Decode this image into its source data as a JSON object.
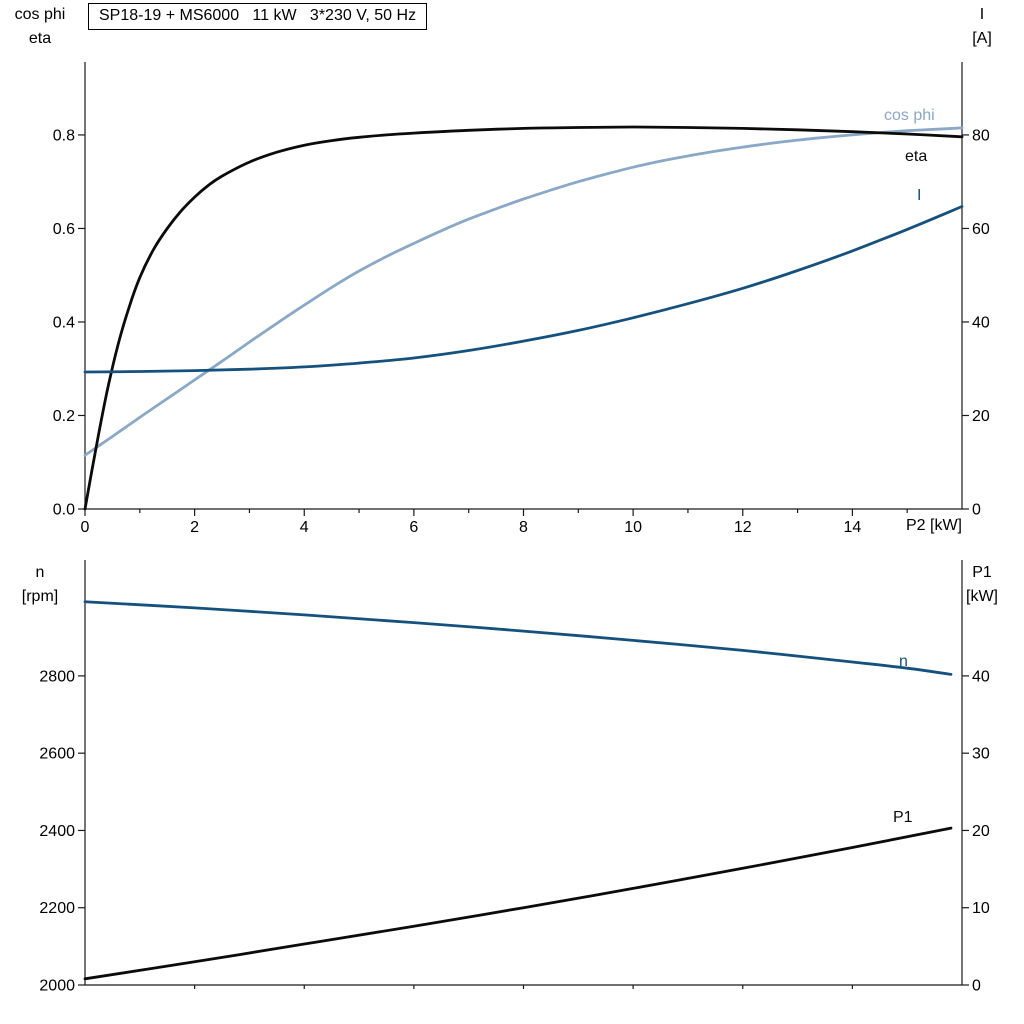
{
  "title": "SP18-19 + MS6000   11 kW   3*230 V, 50 Hz",
  "colors": {
    "black": "#0b0b0b",
    "light_blue": "#8aa8c7",
    "navy": "#15517e",
    "axis": "#1a1a1a"
  },
  "labels": {
    "top_left": [
      "cos phi",
      "eta"
    ],
    "top_right": [
      "I",
      "[A]"
    ],
    "bottom_left": [
      "n",
      "[rpm]"
    ],
    "bottom_right": [
      "P1",
      "[kW]"
    ],
    "x_axis": "P2 [kW]"
  },
  "chart_data": [
    {
      "type": "line",
      "title": "SP18-19 + MS6000   11 kW   3*230 V, 50 Hz",
      "xlabel": "P2 [kW]",
      "ylabel_left": [
        "cos phi",
        "eta"
      ],
      "ylabel_right": [
        "I",
        "[A]"
      ],
      "xlim": [
        0,
        16
      ],
      "ylim_left": [
        0,
        0.956
      ],
      "ylim_right": [
        0,
        95.6
      ],
      "grid": false,
      "legend_position": "labels-at-curve-ends",
      "xticks": [
        {
          "v": 0,
          "t": "0"
        },
        {
          "v": 2,
          "t": "2"
        },
        {
          "v": 4,
          "t": "4"
        },
        {
          "v": 6,
          "t": "6"
        },
        {
          "v": 8,
          "t": "8"
        },
        {
          "v": 10,
          "t": "10"
        },
        {
          "v": 12,
          "t": "12"
        },
        {
          "v": 14,
          "t": "14"
        }
      ],
      "minor_xticks": [
        1,
        3,
        5,
        7,
        9,
        11,
        13,
        15
      ],
      "yticks_left": [
        {
          "v": 0,
          "t": "0.0"
        },
        {
          "v": 0.2,
          "t": "0.2"
        },
        {
          "v": 0.4,
          "t": "0.4"
        },
        {
          "v": 0.6,
          "t": "0.6"
        },
        {
          "v": 0.8,
          "t": "0.8"
        }
      ],
      "yticks_right": [
        {
          "v": 0,
          "t": "0"
        },
        {
          "v": 20,
          "t": "20"
        },
        {
          "v": 40,
          "t": "40"
        },
        {
          "v": 60,
          "t": "60"
        },
        {
          "v": 80,
          "t": "80"
        }
      ],
      "series": [
        {
          "name": "cos phi",
          "axis": "left",
          "color_key": "light_blue",
          "points": [
            [
              0,
              0.115
            ],
            [
              0.5,
              0.155
            ],
            [
              1,
              0.196
            ],
            [
              1.5,
              0.236
            ],
            [
              2,
              0.276
            ],
            [
              2.5,
              0.316
            ],
            [
              3,
              0.357
            ],
            [
              3.5,
              0.397
            ],
            [
              4,
              0.436
            ],
            [
              4.5,
              0.474
            ],
            [
              5,
              0.509
            ],
            [
              5.5,
              0.54
            ],
            [
              6,
              0.568
            ],
            [
              6.5,
              0.595
            ],
            [
              7,
              0.62
            ],
            [
              7.5,
              0.642
            ],
            [
              8,
              0.663
            ],
            [
              8.5,
              0.682
            ],
            [
              9,
              0.7
            ],
            [
              9.5,
              0.716
            ],
            [
              10,
              0.731
            ],
            [
              10.5,
              0.744
            ],
            [
              11,
              0.755
            ],
            [
              11.5,
              0.765
            ],
            [
              12,
              0.774
            ],
            [
              12.5,
              0.782
            ],
            [
              13,
              0.789
            ],
            [
              13.5,
              0.795
            ],
            [
              14,
              0.8
            ],
            [
              14.5,
              0.805
            ],
            [
              15,
              0.809
            ],
            [
              15.5,
              0.812
            ],
            [
              16,
              0.815
            ]
          ]
        },
        {
          "name": "eta",
          "axis": "left",
          "color_key": "black",
          "points": [
            [
              0,
              0
            ],
            [
              0.2,
              0.13
            ],
            [
              0.4,
              0.25
            ],
            [
              0.6,
              0.35
            ],
            [
              0.8,
              0.43
            ],
            [
              1,
              0.495
            ],
            [
              1.25,
              0.555
            ],
            [
              1.5,
              0.6
            ],
            [
              1.75,
              0.637
            ],
            [
              2,
              0.667
            ],
            [
              2.25,
              0.692
            ],
            [
              2.5,
              0.712
            ],
            [
              3,
              0.742
            ],
            [
              3.5,
              0.763
            ],
            [
              4,
              0.778
            ],
            [
              4.5,
              0.788
            ],
            [
              5,
              0.795
            ],
            [
              5.5,
              0.8
            ],
            [
              6,
              0.804
            ],
            [
              7,
              0.81
            ],
            [
              8,
              0.814
            ],
            [
              9,
              0.816
            ],
            [
              10,
              0.817
            ],
            [
              11,
              0.816
            ],
            [
              12,
              0.814
            ],
            [
              13,
              0.811
            ],
            [
              14,
              0.807
            ],
            [
              15,
              0.802
            ],
            [
              16,
              0.796
            ]
          ]
        },
        {
          "name": "I",
          "axis": "right",
          "color_key": "navy",
          "points": [
            [
              0,
              29.3
            ],
            [
              1,
              29.4
            ],
            [
              2,
              29.6
            ],
            [
              3,
              29.9
            ],
            [
              4,
              30.4
            ],
            [
              5,
              31.2
            ],
            [
              6,
              32.3
            ],
            [
              7,
              33.9
            ],
            [
              8,
              35.9
            ],
            [
              9,
              38.2
            ],
            [
              10,
              40.9
            ],
            [
              11,
              43.9
            ],
            [
              12,
              47.2
            ],
            [
              13,
              51.0
            ],
            [
              14,
              55.2
            ],
            [
              15,
              59.8
            ],
            [
              16,
              64.7
            ]
          ]
        }
      ]
    },
    {
      "type": "line",
      "xlabel": "",
      "ylabel_left": [
        "n",
        "[rpm]"
      ],
      "ylabel_right": [
        "P1",
        "[kW]"
      ],
      "xlim": [
        0,
        16
      ],
      "ylim_left": [
        2000,
        3100
      ],
      "ylim_right": [
        0,
        55
      ],
      "grid": false,
      "legend_position": "labels-at-curve-ends",
      "xticks": [],
      "minor_xticks": [
        2,
        4,
        6,
        8,
        10,
        12,
        14
      ],
      "yticks_left": [
        {
          "v": 2000,
          "t": "2000"
        },
        {
          "v": 2200,
          "t": "2200"
        },
        {
          "v": 2400,
          "t": "2400"
        },
        {
          "v": 2600,
          "t": "2600"
        },
        {
          "v": 2800,
          "t": "2800"
        }
      ],
      "yticks_right": [
        {
          "v": 0,
          "t": "0"
        },
        {
          "v": 10,
          "t": "10"
        },
        {
          "v": 20,
          "t": "20"
        },
        {
          "v": 30,
          "t": "30"
        },
        {
          "v": 40,
          "t": "40"
        }
      ],
      "series": [
        {
          "name": "n",
          "axis": "left",
          "color_key": "navy",
          "points": [
            [
              0,
              2992
            ],
            [
              2,
              2976
            ],
            [
              4,
              2958
            ],
            [
              6,
              2938
            ],
            [
              8,
              2916
            ],
            [
              10,
              2892
            ],
            [
              12,
              2866
            ],
            [
              14,
              2836
            ],
            [
              15,
              2820
            ],
            [
              15.8,
              2804
            ]
          ]
        },
        {
          "name": "P1",
          "axis": "right",
          "color_key": "black",
          "points": [
            [
              0,
              0.8
            ],
            [
              2,
              3.0
            ],
            [
              4,
              5.3
            ],
            [
              6,
              7.6
            ],
            [
              8,
              10.0
            ],
            [
              10,
              12.5
            ],
            [
              12,
              15.1
            ],
            [
              14,
              17.8
            ],
            [
              15.8,
              20.3
            ]
          ]
        }
      ]
    }
  ]
}
